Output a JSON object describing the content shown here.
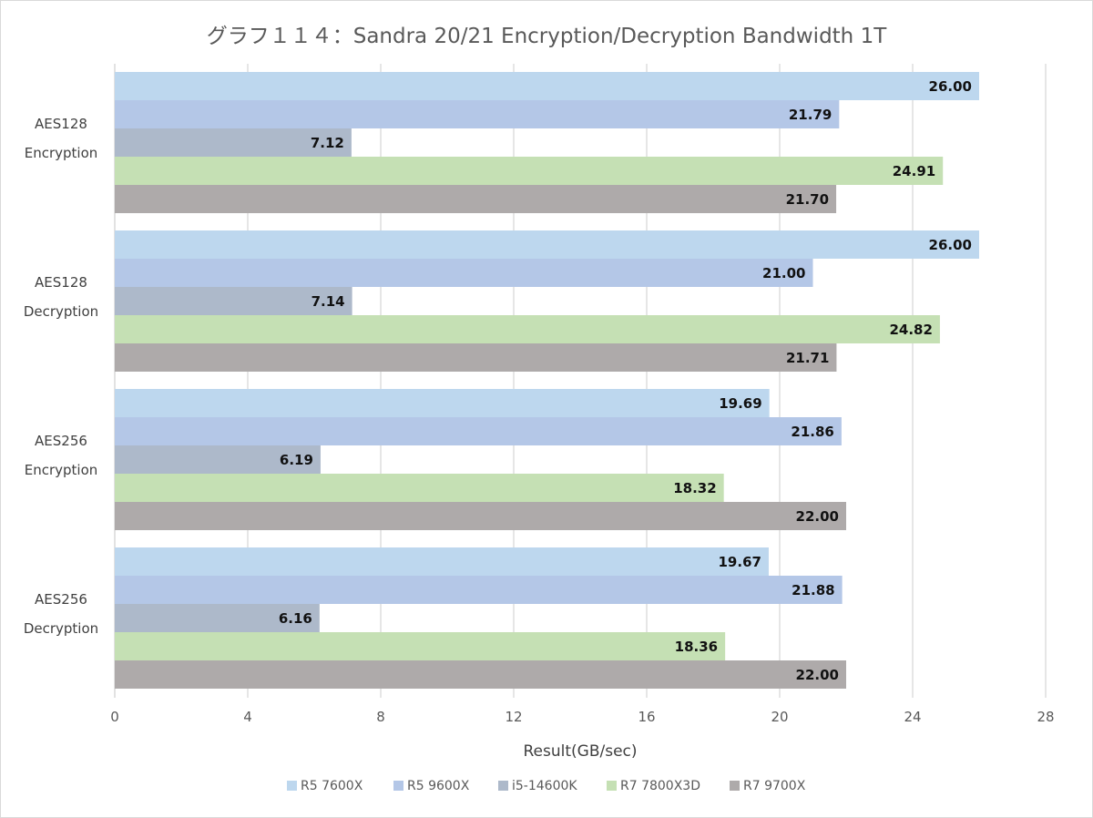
{
  "chart_data": {
    "type": "bar",
    "orientation": "horizontal",
    "title": "グラフ１１４：Sandra 20/21 Encryption/Decryption  Bandwidth 1T",
    "xlabel": "Result(GB/sec)",
    "ylabel": "",
    "xlim": [
      0,
      28
    ],
    "xticks": [
      0,
      4,
      8,
      12,
      16,
      20,
      24,
      28
    ],
    "grid": true,
    "legend_position": "bottom",
    "categories": [
      [
        "AES128",
        "Encryption"
      ],
      [
        "AES128",
        "Decryption"
      ],
      [
        "AES256",
        "Encryption"
      ],
      [
        "AES256",
        "Decryption"
      ]
    ],
    "series": [
      {
        "name": "R5 7600X",
        "color": "#bdd7ee",
        "values": [
          26.0,
          26.0,
          19.69,
          19.67
        ],
        "labels": [
          "26.00",
          "26.00",
          "19.69",
          "19.67"
        ]
      },
      {
        "name": "R5 9600X",
        "color": "#b4c7e7",
        "values": [
          21.79,
          21.0,
          21.86,
          21.88
        ],
        "labels": [
          "21.79",
          "21.00",
          "21.86",
          "21.88"
        ]
      },
      {
        "name": "i5-14600K",
        "color": "#adb9ca",
        "values": [
          7.12,
          7.14,
          6.19,
          6.16
        ],
        "labels": [
          "7.12",
          "7.14",
          "6.19",
          "6.16"
        ]
      },
      {
        "name": "R7 7800X3D",
        "color": "#c5e0b4",
        "values": [
          24.91,
          24.82,
          18.32,
          18.36
        ],
        "labels": [
          "24.91",
          "24.82",
          "18.32",
          "18.36"
        ]
      },
      {
        "name": "R7 9700X",
        "color": "#aeaaaa",
        "values": [
          21.7,
          21.71,
          22.0,
          22.0
        ],
        "labels": [
          "21.70",
          "21.71",
          "22.00",
          "22.00"
        ]
      }
    ]
  }
}
